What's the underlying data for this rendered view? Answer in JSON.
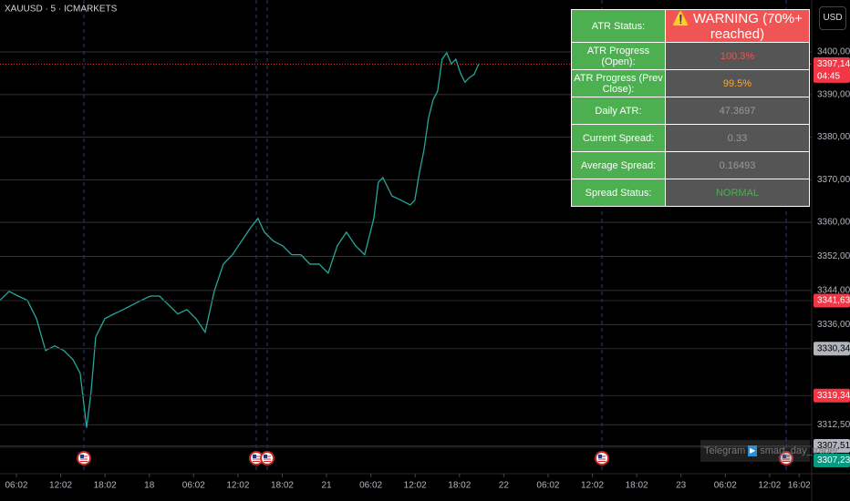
{
  "chart_data": {
    "type": "line",
    "title": "XAUUSD · 5 · ICMARKETS",
    "color": "#26a69a",
    "grid": true,
    "x": [
      3.78,
      5.01,
      6.25,
      7.48,
      8.72,
      9.95,
      11.19,
      12.42,
      13.65,
      14.64,
      15.51,
      16.12,
      16.74,
      17.98,
      19.21,
      20.44,
      21.68,
      22.91,
      24.15,
      25.38,
      26.62,
      27.85,
      29.09,
      30.32,
      31.56,
      32.79,
      34.02,
      35.26,
      36.49,
      37.73,
      38.72,
      39.58,
      40.81,
      42.05,
      43.28,
      44.52,
      45.75,
      46.99,
      48.22,
      49.46,
      50.69,
      51.93,
      53.16,
      54.4,
      55.01,
      55.63,
      56.86,
      58.1,
      59.33,
      59.95,
      60.57,
      61.19,
      61.8,
      62.42,
      63.04,
      63.65,
      64.27,
      64.89,
      65.51,
      66.12,
      66.74,
      67.36,
      67.98,
      68.59
    ],
    "values": [
      3341.7,
      3343.8,
      3342.7,
      3341.7,
      3337.4,
      3329.9,
      3331.0,
      3329.9,
      3327.8,
      3324.6,
      3311.8,
      3320.3,
      3333.1,
      3337.4,
      3338.5,
      3339.5,
      3340.6,
      3341.7,
      3342.7,
      3342.7,
      3340.6,
      3338.5,
      3339.5,
      3337.4,
      3334.2,
      3343.8,
      3350.2,
      3352.4,
      3355.6,
      3358.8,
      3360.9,
      3357.7,
      3355.6,
      3354.5,
      3352.4,
      3352.4,
      3350.2,
      3350.2,
      3348.1,
      3354.5,
      3357.7,
      3354.5,
      3352.4,
      3360.9,
      3369.4,
      3370.5,
      3366.2,
      3365.2,
      3364.1,
      3365.2,
      3371.6,
      3376.9,
      3384.4,
      3388.7,
      3390.8,
      3398.3,
      3399.8,
      3397.2,
      3398.3,
      3395.1,
      3392.9,
      3394.0,
      3394.7,
      3397.14
    ],
    "xlim": [
      3.78,
      113.7
    ],
    "xticks": [
      {
        "value": 6,
        "label": "06:02"
      },
      {
        "value": 12,
        "label": "12:02"
      },
      {
        "value": 18,
        "label": "18:02"
      },
      {
        "value": 24,
        "label": "18"
      },
      {
        "value": 30,
        "label": "06:02"
      },
      {
        "value": 36,
        "label": "12:02"
      },
      {
        "value": 42,
        "label": "18:02"
      },
      {
        "value": 48,
        "label": "21"
      },
      {
        "value": 54,
        "label": "06:02"
      },
      {
        "value": 60,
        "label": "12:02"
      },
      {
        "value": 66,
        "label": "18:02"
      },
      {
        "value": 72,
        "label": "22"
      },
      {
        "value": 78,
        "label": "06:02"
      },
      {
        "value": 84,
        "label": "12:02"
      },
      {
        "value": 90,
        "label": "18:02"
      },
      {
        "value": 96,
        "label": "23"
      },
      {
        "value": 102,
        "label": "06:02"
      },
      {
        "value": 108,
        "label": "12:02"
      },
      {
        "value": 112,
        "label": "16:02"
      }
    ],
    "ylim": [
      3301,
      3412.2
    ],
    "yticks": [
      {
        "value": 3400,
        "label": "3400,00"
      },
      {
        "value": 3390,
        "label": "3390,00"
      },
      {
        "value": 3380,
        "label": "3380,00"
      },
      {
        "value": 3370,
        "label": "3370,00"
      },
      {
        "value": 3360,
        "label": "3360,00"
      },
      {
        "value": 3352,
        "label": "3352,00"
      },
      {
        "value": 3344,
        "label": "3344,00"
      },
      {
        "value": 3336,
        "label": "3336,00"
      },
      {
        "value": 3312.5,
        "label": "3312,50"
      }
    ],
    "price_tags": [
      {
        "value": 3397.14,
        "label": "3397,14",
        "countdown": "04:45",
        "color": "#f23645"
      },
      {
        "value": 3341.63,
        "label": "3341,63",
        "color": "#f23645"
      },
      {
        "value": 3330.34,
        "label": "3330,34",
        "color": "#b2b5be"
      },
      {
        "value": 3319.34,
        "label": "3319,34",
        "color": "#f23645"
      },
      {
        "value": 3307.51,
        "label": "3307,51",
        "color": "#b2b5be"
      },
      {
        "value": 3307.23,
        "label": "3307,23",
        "color": "#089981"
      }
    ],
    "currency": "USD",
    "watermark": {
      "site": "Telegram",
      "handle": "smart_day_trader"
    }
  },
  "atr_table": {
    "rows": [
      [
        "ATR Status:",
        "⚠️ WARNING (70%+ reached)"
      ],
      [
        "ATR Progress (Open):",
        "100.3%"
      ],
      [
        "ATR Progress (Prev Close):",
        "99.5%"
      ],
      [
        "Daily ATR:",
        "47.3697"
      ],
      [
        "Current Spread:",
        "0.33"
      ],
      [
        "Average Spread:",
        "0.16493"
      ],
      [
        "Spread Status:",
        "NORMAL"
      ]
    ]
  }
}
